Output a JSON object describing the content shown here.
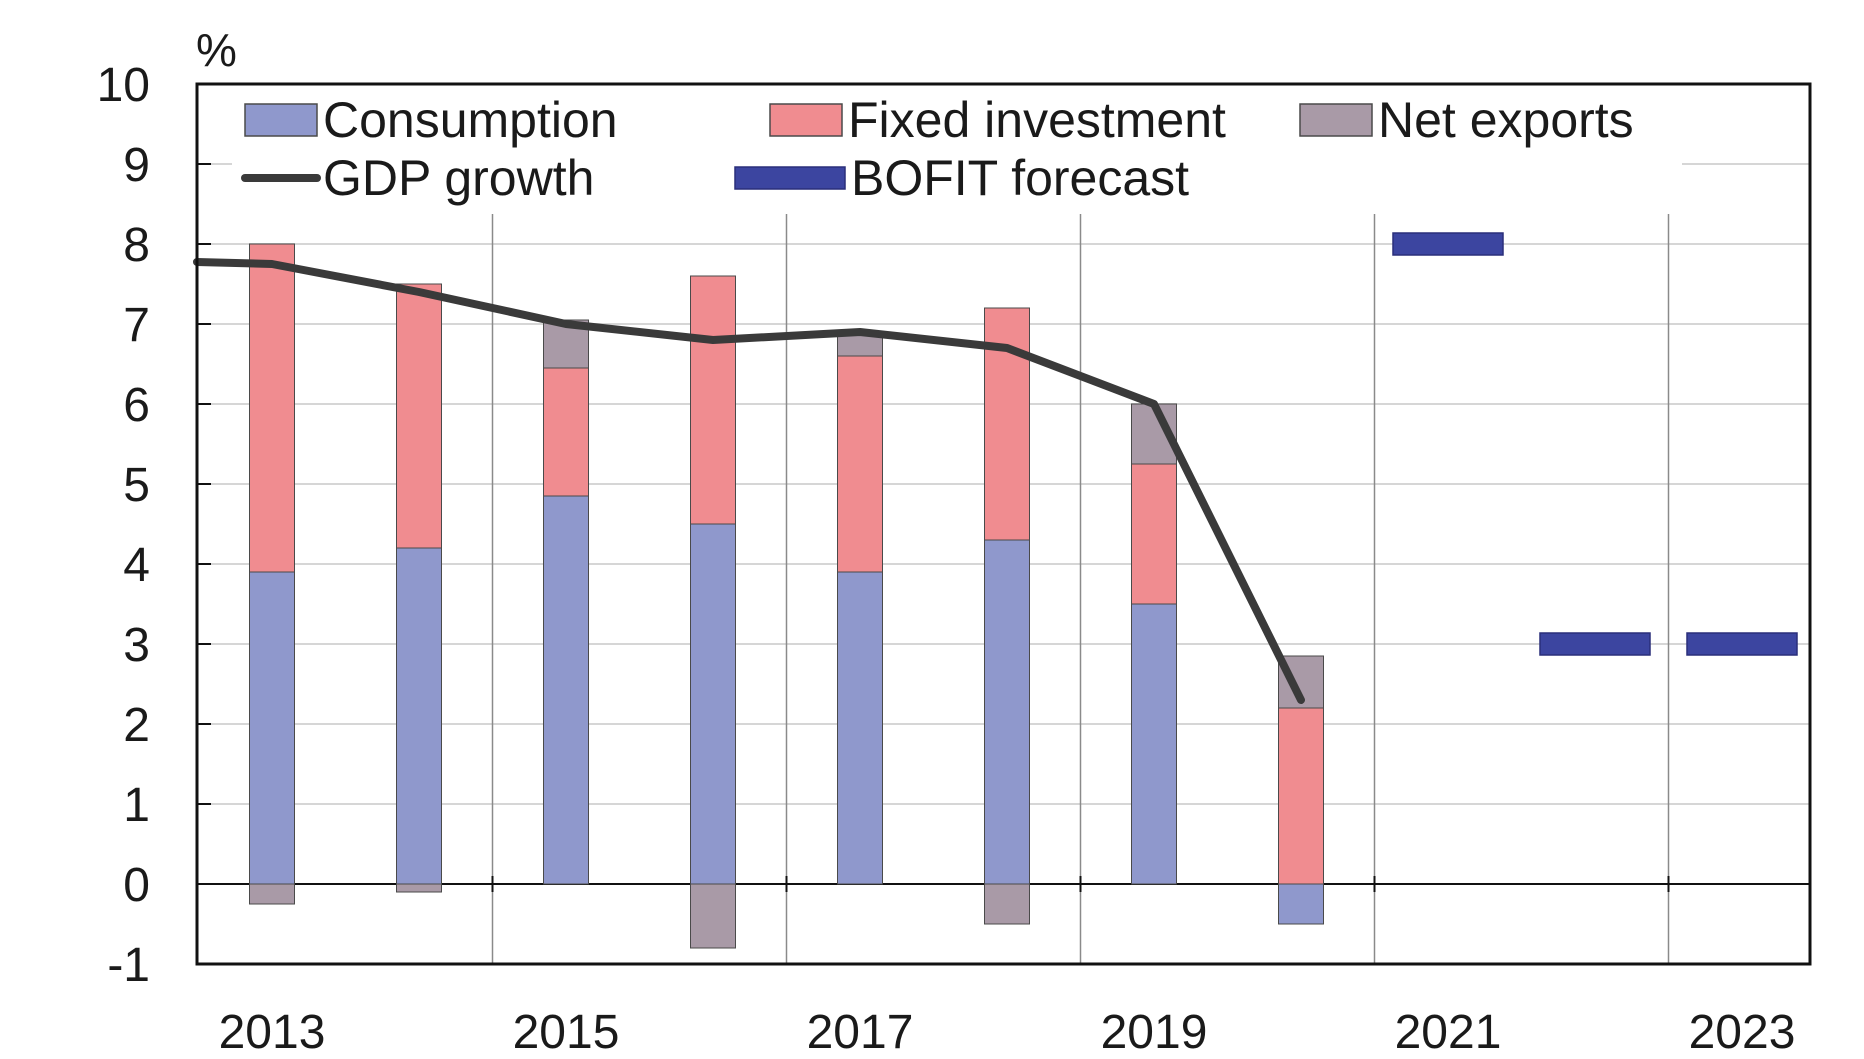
{
  "chart_data": {
    "type": "bar",
    "stacked": true,
    "unit_label": "%",
    "ylim": [
      -1,
      10
    ],
    "yticks": [
      -1,
      0,
      1,
      2,
      3,
      4,
      5,
      6,
      7,
      8,
      9,
      10
    ],
    "x_tick_labels": [
      "2013",
      "2015",
      "2017",
      "2019",
      "2021",
      "2023"
    ],
    "categories": [
      "2013",
      "2014",
      "2015",
      "2016",
      "2017",
      "2018",
      "2019",
      "2020",
      "2021",
      "2022",
      "2023"
    ],
    "grid": true,
    "legend_position": "top",
    "series": [
      {
        "name": "Consumption",
        "color": "#8f98cc",
        "values": [
          3.9,
          4.2,
          4.85,
          4.5,
          3.9,
          4.3,
          3.5,
          -0.5,
          null,
          null,
          null
        ]
      },
      {
        "name": "Fixed investment",
        "color": "#f08c90",
        "values": [
          4.1,
          3.3,
          1.6,
          3.1,
          2.7,
          2.9,
          1.75,
          2.2,
          null,
          null,
          null
        ]
      },
      {
        "name": "Net exports",
        "color": "#a99aa7",
        "values": [
          -0.25,
          -0.1,
          0.6,
          -0.8,
          0.3,
          -0.5,
          0.75,
          0.65,
          null,
          null,
          null
        ]
      }
    ],
    "gdp_growth": {
      "name": "GDP growth",
      "color": "#3a3a3a",
      "points": [
        {
          "x": "2012",
          "y": 7.8
        },
        {
          "x": "2013",
          "y": 7.75
        },
        {
          "x": "2014",
          "y": 7.4
        },
        {
          "x": "2015",
          "y": 7.0
        },
        {
          "x": "2016",
          "y": 6.8
        },
        {
          "x": "2017",
          "y": 6.9
        },
        {
          "x": "2018",
          "y": 6.7
        },
        {
          "x": "2019",
          "y": 6.0
        },
        {
          "x": "2020",
          "y": 2.3
        }
      ]
    },
    "bofit_forecast": {
      "name": "BOFIT forecast",
      "color": "#3c45a0",
      "points": [
        {
          "x": "2021",
          "y": 8.0
        },
        {
          "x": "2022",
          "y": 3.0
        },
        {
          "x": "2023",
          "y": 3.0
        }
      ]
    },
    "legend": [
      {
        "label": "Consumption",
        "kind": "box",
        "color": "#8f98cc"
      },
      {
        "label": "Fixed investment",
        "kind": "box",
        "color": "#f08c90"
      },
      {
        "label": "Net exports",
        "kind": "box",
        "color": "#a99aa7"
      },
      {
        "label": "GDP growth",
        "kind": "line",
        "color": "#3a3a3a"
      },
      {
        "label": "BOFIT forecast",
        "kind": "bar",
        "color": "#3c45a0"
      }
    ]
  }
}
